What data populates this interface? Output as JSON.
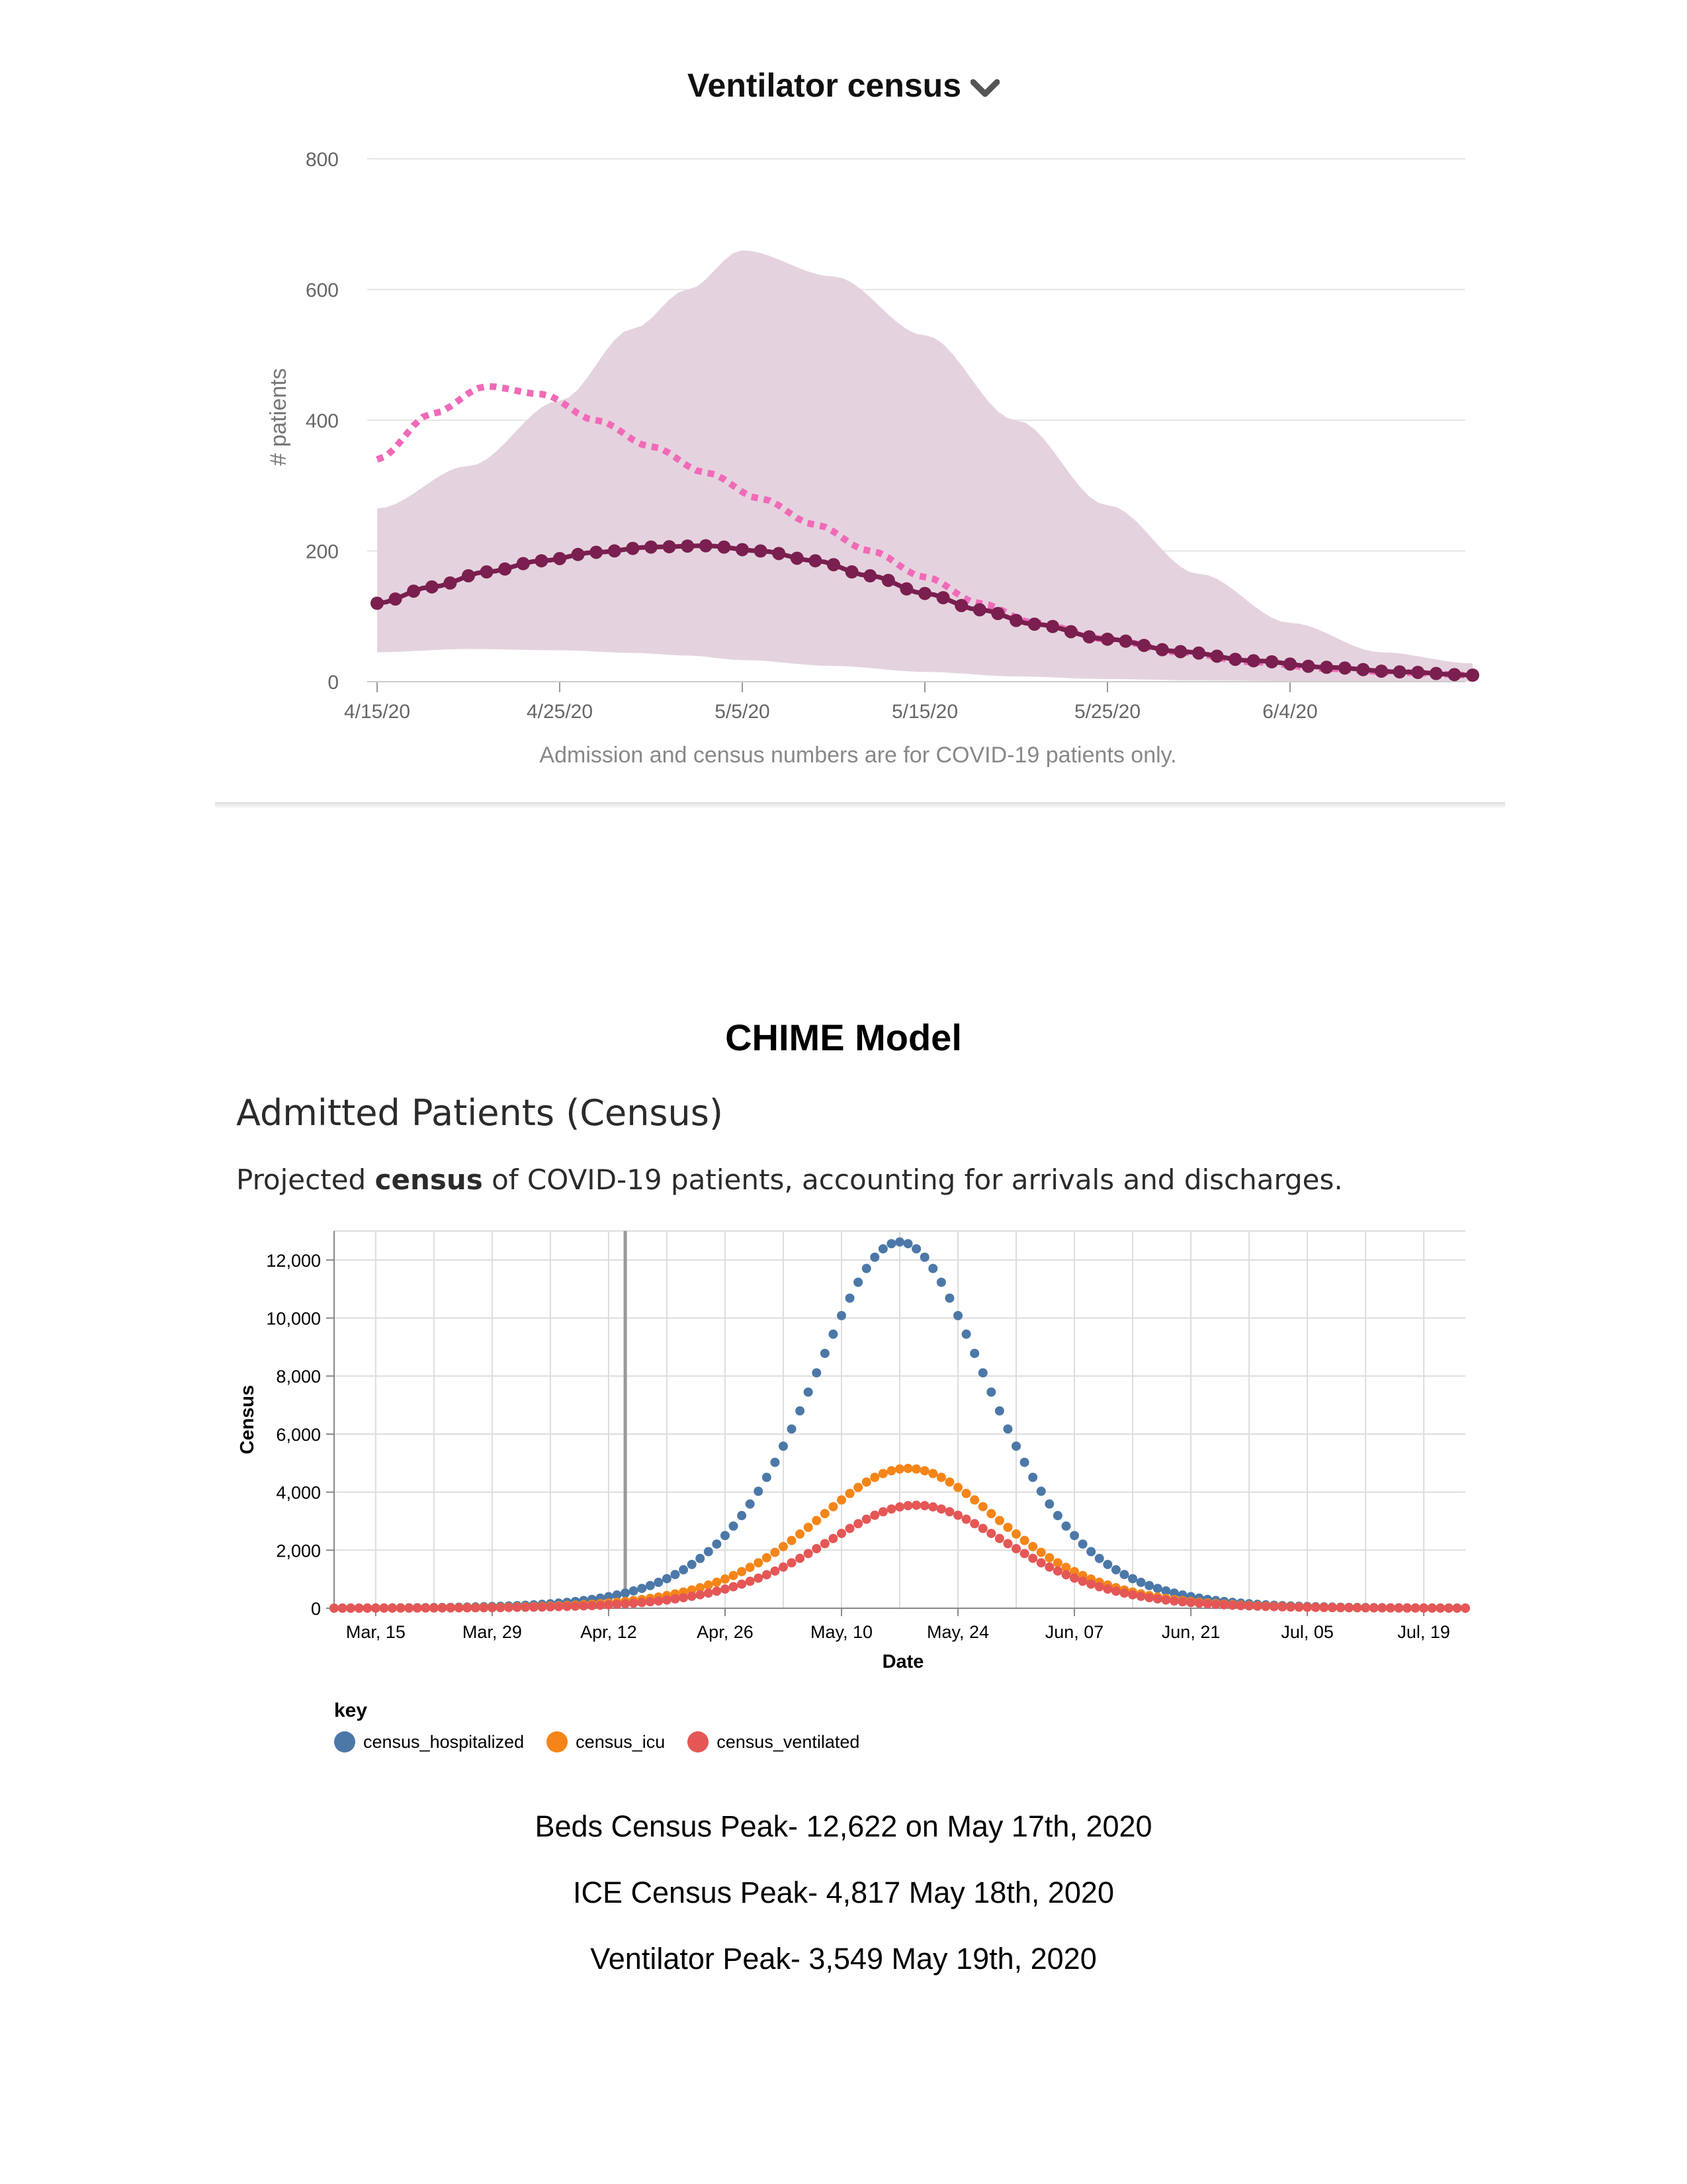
{
  "chart_data": [
    {
      "type": "line",
      "title": "Ventilator census",
      "ylabel": "# patients",
      "xlabel": "",
      "note": "Admission and census numbers are for COVID-19 patients only.",
      "x_ticks": [
        "4/15/20",
        "4/25/20",
        "5/5/20",
        "5/15/20",
        "5/25/20",
        "6/4/20"
      ],
      "y_ticks": [
        0,
        200,
        400,
        600,
        800
      ],
      "ylim": [
        0,
        800
      ],
      "x_range_days_from": "4/15/20",
      "grid": "horizontal",
      "band": {
        "x": [
          "4/15/20",
          "4/20/20",
          "4/25/20",
          "4/29/20",
          "5/2/20",
          "5/5/20",
          "5/10/20",
          "5/15/20",
          "5/20/20",
          "5/25/20",
          "5/30/20",
          "6/4/20",
          "6/9/20",
          "6/14/20"
        ],
        "upper": [
          265,
          330,
          430,
          540,
          600,
          660,
          620,
          530,
          400,
          270,
          165,
          90,
          45,
          28
        ],
        "lower": [
          45,
          50,
          48,
          44,
          40,
          33,
          24,
          15,
          8,
          4,
          2,
          1,
          0,
          0
        ]
      },
      "series": [
        {
          "name": "",
          "style": "dotted-pink",
          "color": "#f06ab8",
          "x": [
            "4/15/20",
            "4/18/20",
            "4/21/20",
            "4/24/20",
            "4/27/20",
            "4/30/20",
            "5/3/20",
            "5/6/20",
            "5/9/20",
            "5/12/20",
            "5/15/20",
            "5/18/20",
            "5/21/20",
            "5/25/20",
            "5/29/20",
            "6/2/20",
            "6/6/20",
            "6/10/20",
            "6/14/20"
          ],
          "values": [
            340,
            410,
            452,
            440,
            400,
            360,
            320,
            280,
            240,
            200,
            160,
            120,
            90,
            65,
            45,
            30,
            20,
            14,
            10
          ]
        },
        {
          "name": "",
          "style": "dots-dark",
          "color": "#7a1f4f",
          "x": [
            "4/15/20",
            "4/18/20",
            "4/21/20",
            "4/24/20",
            "4/27/20",
            "4/30/20",
            "5/3/20",
            "5/6/20",
            "5/9/20",
            "5/12/20",
            "5/15/20",
            "5/18/20",
            "5/21/20",
            "5/25/20",
            "5/29/20",
            "6/2/20",
            "6/6/20",
            "6/10/20",
            "6/14/20"
          ],
          "values": [
            120,
            145,
            168,
            185,
            198,
            206,
            208,
            200,
            185,
            162,
            135,
            110,
            88,
            65,
            46,
            32,
            22,
            15,
            10
          ]
        }
      ]
    },
    {
      "type": "scatter",
      "title": "Admitted Patients (Census)",
      "xlabel": "Date",
      "ylabel": "Census",
      "x_ticks": [
        "Mar, 15",
        "Mar, 29",
        "Apr, 12",
        "Apr, 26",
        "May, 10",
        "May, 24",
        "Jun, 07",
        "Jun, 21",
        "Jul, 05",
        "Jul, 19"
      ],
      "y_ticks": [
        "0",
        "2,000",
        "4,000",
        "6,000",
        "8,000",
        "10,000",
        "12,000"
      ],
      "ylim": [
        0,
        13000
      ],
      "xlim": [
        "Mar, 10",
        "Jul, 24"
      ],
      "grid": true,
      "today_marker": "Apr, 14",
      "legend_title": "key",
      "legend_position": "bottom-left",
      "series": [
        {
          "name": "census_hospitalized",
          "color": "#4c78a8",
          "peak": 12622,
          "peak_day": "May, 17"
        },
        {
          "name": "census_icu",
          "color": "#f58518",
          "peak": 4817,
          "peak_day": "May, 18"
        },
        {
          "name": "census_ventilated",
          "color": "#e45756",
          "peak": 3549,
          "peak_day": "May, 19"
        }
      ]
    }
  ],
  "text": {
    "chart1_title": "Ventilator census",
    "chart1_ylabel": "# patients",
    "chart1_note": "Admission and census numbers are for COVID-19 patients only.",
    "chime_title": "CHIME Model",
    "section_heading": "Admitted Patients (Census)",
    "sub_pre": "Projected ",
    "sub_bold": "census",
    "sub_post": " of COVID-19 patients, accounting for arrivals and discharges.",
    "chart2_xlabel": "Date",
    "chart2_ylabel": "Census",
    "legend_title": "key",
    "peak_lines": [
      "Beds Census Peak- 12,622 on May 17th, 2020",
      "ICE Census Peak- 4,817 May 18th, 2020",
      "Ventilator Peak- 3,549 May 19th, 2020"
    ]
  }
}
